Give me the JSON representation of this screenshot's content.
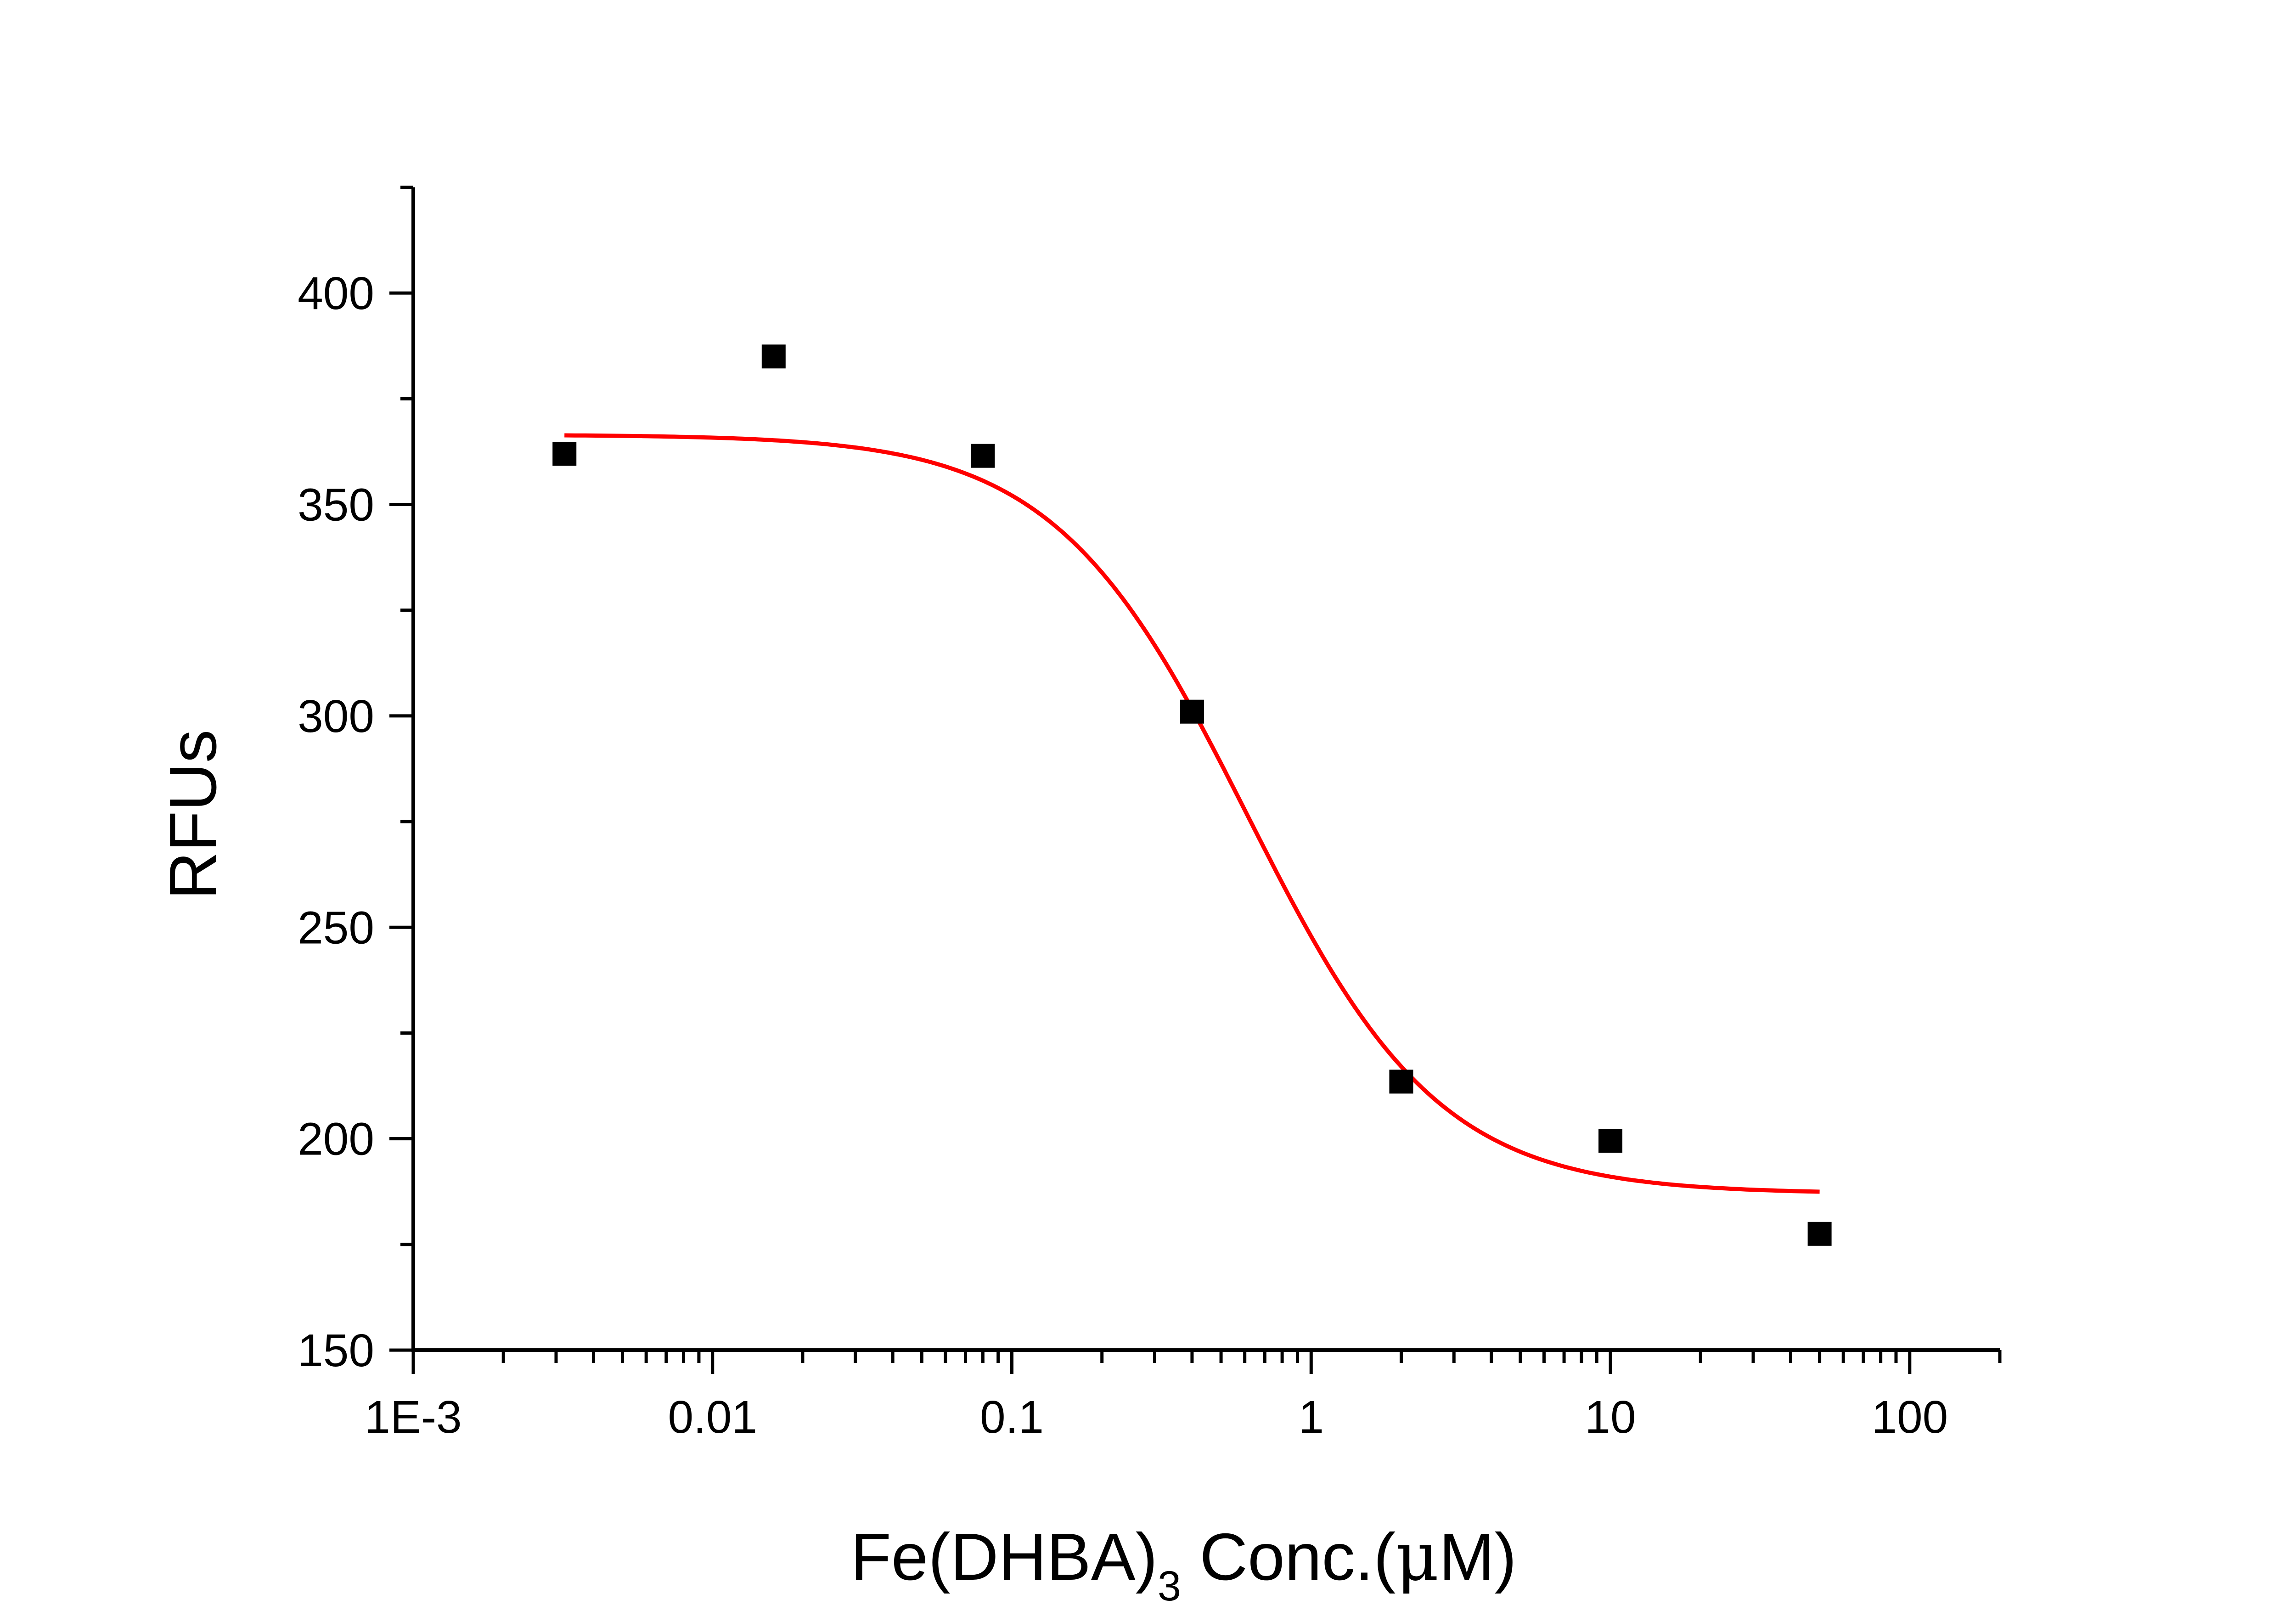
{
  "chart_data": {
    "type": "scatter",
    "x_scale": "log",
    "xlim": [
      0.001,
      200
    ],
    "ylim": [
      150,
      425
    ],
    "x_ticks": [
      {
        "value": 0.001,
        "label": "1E-3"
      },
      {
        "value": 0.01,
        "label": "0.01"
      },
      {
        "value": 0.1,
        "label": "0.1"
      },
      {
        "value": 1,
        "label": "1"
      },
      {
        "value": 10,
        "label": "10"
      },
      {
        "value": 100,
        "label": "100"
      }
    ],
    "y_ticks": [
      {
        "value": 150,
        "label": "150"
      },
      {
        "value": 200,
        "label": "200"
      },
      {
        "value": 250,
        "label": "250"
      },
      {
        "value": 300,
        "label": "300"
      },
      {
        "value": 350,
        "label": "350"
      },
      {
        "value": 400,
        "label": "400"
      }
    ],
    "ylabel": "RFUs",
    "xlabel": {
      "prefix": "Fe(DHBA)",
      "subscript": "3",
      "suffix_before_mu": " Conc.(",
      "mu": "μ",
      "suffix_after_mu": "M)"
    },
    "grid": false,
    "legend": "none",
    "series": [
      {
        "marker": "square",
        "color": "#000000",
        "points": [
          {
            "x": 0.0032,
            "y": 362
          },
          {
            "x": 0.016,
            "y": 385
          },
          {
            "x": 0.08,
            "y": 361.5
          },
          {
            "x": 0.4,
            "y": 301
          },
          {
            "x": 2,
            "y": 213.5
          },
          {
            "x": 10,
            "y": 199.5
          },
          {
            "x": 50,
            "y": 177.5
          }
        ]
      },
      {
        "line_type": "fit",
        "color": "#ff0000",
        "x_range": [
          0.0032,
          50
        ],
        "top": 366.5,
        "bottom": 187,
        "ec50": 0.61,
        "hill": 1.35
      }
    ]
  }
}
